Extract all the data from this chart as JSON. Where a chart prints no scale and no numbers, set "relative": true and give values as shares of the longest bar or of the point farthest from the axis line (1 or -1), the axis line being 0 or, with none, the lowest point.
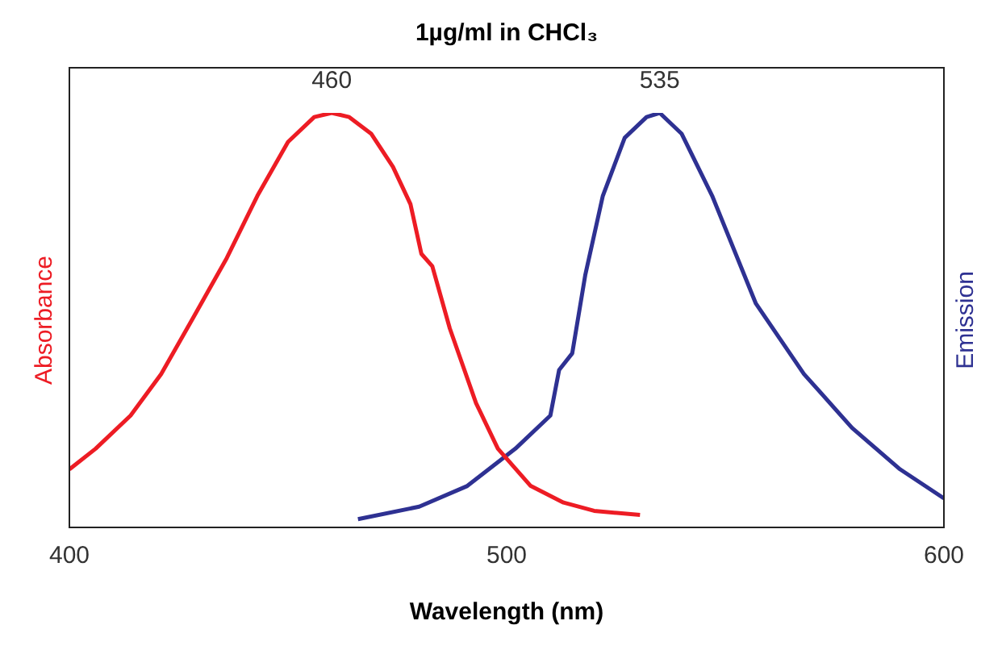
{
  "chart_data": {
    "type": "line",
    "title": "1µg/ml in CHCl₃",
    "xlabel": "Wavelength (nm)",
    "ylabel": "Absorbance",
    "y2label": "Emission",
    "relative": true,
    "xlim": [
      400,
      600
    ],
    "xticks": [
      400,
      500,
      600
    ],
    "series": [
      {
        "color": "#ed1c24",
        "x": [
          400,
          406,
          414,
          421,
          428,
          436,
          443,
          450,
          456,
          460,
          464,
          469,
          474,
          478,
          480.5,
          483,
          487,
          493,
          498,
          505.5,
          513,
          520,
          530.5
        ],
        "values": [
          0.14,
          0.19,
          0.27,
          0.37,
          0.5,
          0.65,
          0.8,
          0.93,
          0.99,
          1.0,
          0.99,
          0.95,
          0.87,
          0.78,
          0.66,
          0.63,
          0.48,
          0.3,
          0.19,
          0.1,
          0.06,
          0.04,
          0.03
        ]
      },
      {
        "color": "#2e3192",
        "axis": "y2",
        "x": [
          466,
          480,
          491,
          502,
          510,
          512,
          515,
          518,
          522,
          527,
          532,
          535,
          540,
          547,
          557,
          568,
          579,
          590,
          600
        ],
        "values": [
          0.02,
          0.05,
          0.1,
          0.19,
          0.27,
          0.38,
          0.42,
          0.61,
          0.8,
          0.94,
          0.99,
          1.0,
          0.95,
          0.8,
          0.54,
          0.37,
          0.24,
          0.14,
          0.07
        ]
      }
    ],
    "annotations": [
      {
        "text": "460",
        "x": 460,
        "y": 1.0
      },
      {
        "text": "535",
        "x": 535,
        "y": 1.0
      }
    ]
  }
}
